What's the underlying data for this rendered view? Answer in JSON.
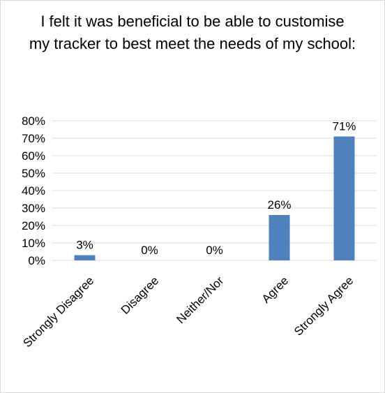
{
  "chart_data": {
    "type": "bar",
    "title": "I felt it was beneficial to be able to customise my tracker to best meet the needs of my school:",
    "categories": [
      "Strongly Disagree",
      "Disagree",
      "Neither/Nor",
      "Agree",
      "Strongly Agree"
    ],
    "values": [
      3,
      0,
      0,
      26,
      71
    ],
    "data_labels": [
      "3%",
      "0%",
      "0%",
      "26%",
      "71%"
    ],
    "y_ticks": [
      "0%",
      "10%",
      "20%",
      "30%",
      "40%",
      "50%",
      "60%",
      "70%",
      "80%"
    ],
    "ylim": [
      0,
      80
    ],
    "grid": true,
    "bar_color": "#4f81bd",
    "grid_color": "#d9d9d9"
  }
}
